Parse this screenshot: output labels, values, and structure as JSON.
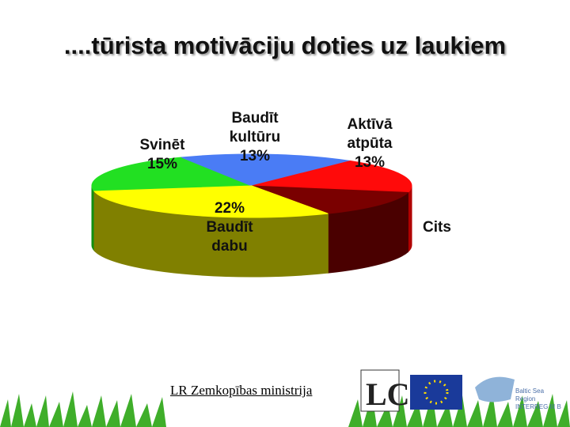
{
  "chart_data": {
    "type": "pie",
    "title": "....tūrista motivāciju doties uz laukiem",
    "categories": [
      "Svinēt",
      "Baudīt kultūru",
      "Aktīvā atpūta",
      "Cits",
      "Baudīt dabu"
    ],
    "values": [
      15,
      13,
      13,
      10,
      22
    ],
    "value_labels": [
      "15%",
      "13%",
      "13%",
      null,
      "22%"
    ],
    "colors": [
      "#22e022",
      "#4a7cf5",
      "#ff0a0a",
      "#7a0000",
      "#ffff00"
    ],
    "side_colors": [
      "#119011",
      "#2a4ca5",
      "#b00000",
      "#4a0000",
      "#808000"
    ]
  },
  "footer": {
    "ministry": "LR Zemkopības ministrija",
    "logo_text": "Baltic Sea Region INTERREG III B"
  }
}
